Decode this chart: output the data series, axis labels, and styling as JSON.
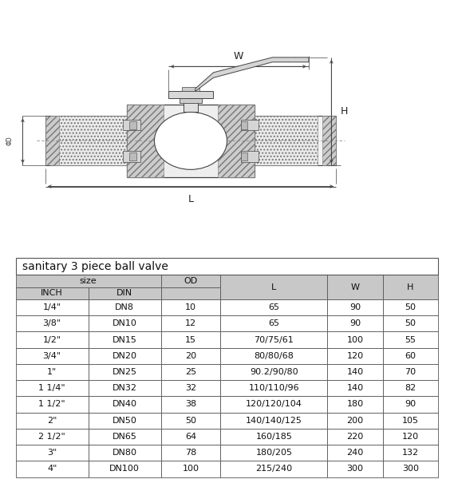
{
  "title": "sanitary 3 piece ball valve",
  "rows": [
    [
      "1/4\"",
      "DN8",
      "10",
      "65",
      "90",
      "50"
    ],
    [
      "3/8\"",
      "DN10",
      "12",
      "65",
      "90",
      "50"
    ],
    [
      "1/2\"",
      "DN15",
      "15",
      "70/75/61",
      "100",
      "55"
    ],
    [
      "3/4\"",
      "DN20",
      "20",
      "80/80/68",
      "120",
      "60"
    ],
    [
      "1\"",
      "DN25",
      "25",
      "90.2/90/80",
      "140",
      "70"
    ],
    [
      "1 1/4\"",
      "DN32",
      "32",
      "110/110/96",
      "140",
      "82"
    ],
    [
      "1 1/2\"",
      "DN40",
      "38",
      "120/120/104",
      "180",
      "90"
    ],
    [
      "2\"",
      "DN50",
      "50",
      "140/140/125",
      "200",
      "105"
    ],
    [
      "2 1/2\"",
      "DN65",
      "64",
      "160/185",
      "220",
      "120"
    ],
    [
      "3\"",
      "DN80",
      "78",
      "180/205",
      "240",
      "132"
    ],
    [
      "4\"",
      "DN100",
      "100",
      "215/240",
      "300",
      "300"
    ]
  ],
  "bg_color": "#ffffff",
  "header_bg": "#c8c8c8",
  "border_color": "#555555",
  "text_color": "#111111",
  "lc": "#444444",
  "lc2": "#777777"
}
